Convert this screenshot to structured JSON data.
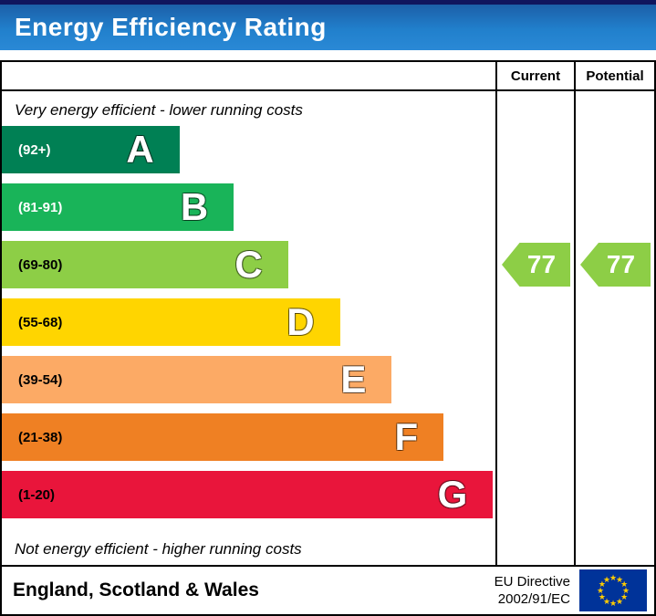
{
  "title": "Energy Efficiency Rating",
  "header": {
    "current": "Current",
    "potential": "Potential"
  },
  "notes": {
    "top": "Very energy efficient - lower running costs",
    "bottom": "Not energy efficient - higher running costs"
  },
  "chart_data": {
    "type": "bar",
    "title": "Energy Efficiency Rating",
    "scale": [
      1,
      100
    ],
    "bands": [
      {
        "letter": "A",
        "range": "(92+)",
        "min": 92,
        "max": 100,
        "color": "#008054",
        "range_text_color": "#ffffff",
        "width_pct": 36
      },
      {
        "letter": "B",
        "range": "(81-91)",
        "min": 81,
        "max": 91,
        "color": "#19b459",
        "range_text_color": "#ffffff",
        "width_pct": 47
      },
      {
        "letter": "C",
        "range": "(69-80)",
        "min": 69,
        "max": 80,
        "color": "#8dce46",
        "range_text_color": "#000000",
        "width_pct": 58
      },
      {
        "letter": "D",
        "range": "(55-68)",
        "min": 55,
        "max": 68,
        "color": "#ffd500",
        "range_text_color": "#000000",
        "width_pct": 68.5
      },
      {
        "letter": "E",
        "range": "(39-54)",
        "min": 39,
        "max": 54,
        "color": "#fcaa65",
        "range_text_color": "#000000",
        "width_pct": 79
      },
      {
        "letter": "F",
        "range": "(21-38)",
        "min": 21,
        "max": 38,
        "color": "#ef8023",
        "range_text_color": "#000000",
        "width_pct": 89.5
      },
      {
        "letter": "G",
        "range": "(1-20)",
        "min": 1,
        "max": 20,
        "color": "#e9153b",
        "range_text_color": "#000000",
        "width_pct": 99.5
      }
    ],
    "current": {
      "value": 77,
      "band": "C",
      "band_index": 2,
      "color": "#8dce46"
    },
    "potential": {
      "value": 77,
      "band": "C",
      "band_index": 2,
      "color": "#8dce46"
    }
  },
  "footer": {
    "region": "England, Scotland & Wales",
    "directive_line1": "EU Directive",
    "directive_line2": "2002/91/EC",
    "eu_flag": {
      "background": "#003399",
      "star_color": "#ffcc00"
    }
  },
  "colors": {
    "banner_blue": "#2180cc",
    "banner_top_strip": "#10155e"
  }
}
